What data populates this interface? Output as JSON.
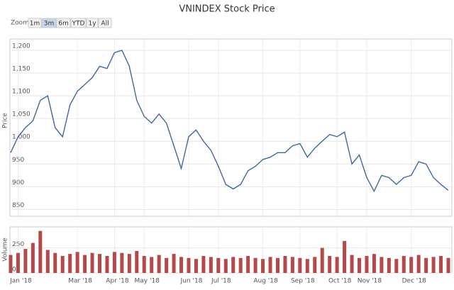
{
  "chart_data": {
    "type": "stock",
    "title": "VNINDEX Stock Price",
    "range_selector": {
      "label": "Zoom",
      "buttons": [
        "1m",
        "3m",
        "6m",
        "YTD",
        "1y",
        "All"
      ],
      "selected": 1
    },
    "ylabel": "Price",
    "y2label": "Volume",
    "grid": true,
    "categories": [
      null,
      "Jan '18",
      null,
      null,
      null,
      null,
      null,
      null,
      null,
      "Mar '18",
      null,
      null,
      null,
      null,
      "Apr '18",
      null,
      null,
      null,
      "May '18",
      null,
      null,
      null,
      null,
      null,
      "Jun '18",
      null,
      null,
      null,
      "Jul '18",
      null,
      null,
      null,
      null,
      null,
      "Aug '18",
      null,
      null,
      null,
      null,
      "Sep '18",
      null,
      null,
      null,
      null,
      "Oct '18",
      null,
      null,
      null,
      "Nov '18",
      null,
      null,
      null,
      null,
      null,
      "Dec '18",
      null,
      null,
      null,
      null,
      null
    ],
    "series": [
      {
        "type": "line",
        "color": "#3d6a9e",
        "values": [
          975,
          1010,
          1030,
          1045,
          1090,
          1100,
          1030,
          1010,
          1080,
          1110,
          1125,
          1140,
          1165,
          1160,
          1195,
          1200,
          1165,
          1090,
          1055,
          1040,
          1060,
          1040,
          990,
          940,
          1010,
          1025,
          1000,
          980,
          945,
          905,
          895,
          905,
          935,
          945,
          960,
          965,
          975,
          975,
          990,
          995,
          965,
          985,
          1000,
          1015,
          1010,
          1020,
          950,
          970,
          920,
          890,
          925,
          920,
          905,
          920,
          925,
          955,
          950,
          920,
          905,
          892
        ]
      },
      {
        "type": "bar",
        "axis": "y2",
        "color": "#b5494a",
        "values": [
          180,
          200,
          240,
          300,
          420,
          230,
          200,
          170,
          190,
          210,
          180,
          200,
          190,
          170,
          210,
          200,
          190,
          220,
          170,
          160,
          180,
          150,
          190,
          160,
          150,
          140,
          170,
          160,
          150,
          140,
          160,
          150,
          170,
          150,
          140,
          160,
          150,
          170,
          160,
          150,
          140,
          160,
          250,
          170,
          160,
          320,
          180,
          150,
          170,
          190,
          160,
          150,
          140,
          170,
          160,
          180,
          150,
          160,
          170,
          150
        ]
      }
    ],
    "ylim": [
      835,
      1225
    ],
    "yticks": [
      850,
      900,
      950,
      {
        "value": 1000,
        "label": "1,000"
      },
      {
        "value": 1050,
        "label": "1,050"
      },
      {
        "value": 1100,
        "label": "1,100"
      },
      {
        "value": 1150,
        "label": "1,150"
      },
      {
        "value": 1200,
        "label": "1,200"
      }
    ],
    "y2lim": [
      0,
      460
    ],
    "y2ticks": [
      0,
      250
    ]
  }
}
